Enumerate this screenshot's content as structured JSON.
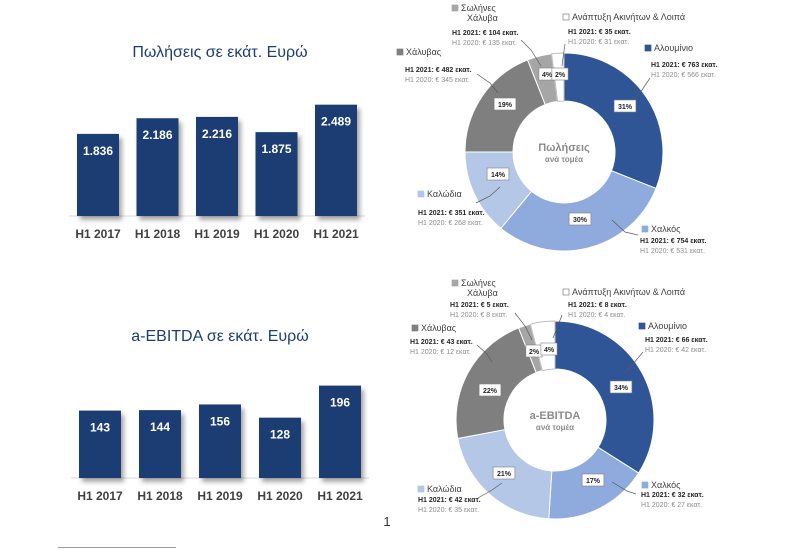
{
  "colors": {
    "bar": "#1f3c73",
    "steel": "#7f7f7f",
    "pipes": "#a6a6a6",
    "cables": "#b4c7e7",
    "copper": "#8faadc",
    "aluminium": "#2f5597",
    "realestate": "#ffffff"
  },
  "page_number": "1",
  "chart_data": [
    {
      "type": "bar",
      "title": "Πωλήσεις σε εκάτ. Ευρώ",
      "categories": [
        "H1 2017",
        "H1 2018",
        "H1 2019",
        "H1 2020",
        "H1 2021"
      ],
      "values": [
        1836,
        2186,
        2216,
        1875,
        2489
      ],
      "value_labels": [
        "1.836",
        "2.186",
        "2.216",
        "1.875",
        "2.489"
      ],
      "ylim": [
        0,
        2750
      ]
    },
    {
      "type": "bar",
      "title": "a-EBITDA σε εκάτ. Ευρώ",
      "categories": [
        "H1 2017",
        "H1 2018",
        "H1 2019",
        "H1 2020",
        "H1 2021"
      ],
      "values": [
        143,
        144,
        156,
        128,
        196
      ],
      "value_labels": [
        "143",
        "144",
        "156",
        "128",
        "196"
      ],
      "ylim": [
        0,
        210
      ]
    },
    {
      "type": "pie",
      "center_title": "Πωλήσεις",
      "center_subtitle": "ανά τομέα",
      "slices": [
        {
          "name": "Αλουμίνιο",
          "pct": 31,
          "pct_label": "31%",
          "h1_2021": "H1 2021: € 763 εκατ.",
          "h1_2020": "H1 2020: € 566 εκατ.",
          "color_key": "aluminium"
        },
        {
          "name": "Χαλκός",
          "pct": 30,
          "pct_label": "30%",
          "h1_2021": "H1 2021: € 754 εκατ.",
          "h1_2020": "H1 2020: € 531 εκατ.",
          "color_key": "copper"
        },
        {
          "name": "Καλώδια",
          "pct": 14,
          "pct_label": "14%",
          "h1_2021": "H1 2021: € 351 εκατ.",
          "h1_2020": "H1 2020: € 268 εκατ.",
          "color_key": "cables"
        },
        {
          "name": "Χάλυβας",
          "pct": 19,
          "pct_label": "19%",
          "h1_2021": "H1 2021: € 482 εκατ.",
          "h1_2020": "H1 2020: € 345 εκατ.",
          "color_key": "steel"
        },
        {
          "name": "Σωλήνες Χάλυβα",
          "name_lines": [
            "Σωλήνες",
            "Χάλυβα"
          ],
          "pct": 4,
          "pct_label": "4%",
          "h1_2021": "H1 2021: € 104 εκατ.",
          "h1_2020": "H1 2020: € 135 εκατ.",
          "color_key": "pipes"
        },
        {
          "name": "Ανάπτυξη Ακινήτων & Λοιπά",
          "pct": 2,
          "pct_label": "2%",
          "h1_2021": "H1 2021: € 35 εκατ.",
          "h1_2020": "H1 2020: € 31 εκατ.",
          "color_key": "realestate"
        }
      ]
    },
    {
      "type": "pie",
      "center_title": "a-EBITDA",
      "center_subtitle": "ανά τομέα",
      "slices": [
        {
          "name": "Αλουμίνιο",
          "pct": 34,
          "pct_label": "34%",
          "h1_2021": "H1 2021: € 66 εκατ.",
          "h1_2020": "H1 2020: € 42 εκατ.",
          "color_key": "aluminium"
        },
        {
          "name": "Χαλκός",
          "pct": 17,
          "pct_label": "17%",
          "h1_2021": "H1 2021: € 32 εκατ.",
          "h1_2020": "H1 2020: € 27 εκατ.",
          "color_key": "copper"
        },
        {
          "name": "Καλώδια",
          "pct": 21,
          "pct_label": "21%",
          "h1_2021": "H1 2021: € 42 εκατ.",
          "h1_2020": "H1 2020: € 35 εκατ.",
          "color_key": "cables"
        },
        {
          "name": "Χάλυβας",
          "pct": 22,
          "pct_label": "22%",
          "h1_2021": "H1 2021: € 43 εκατ.",
          "h1_2020": "H1 2020: € 12 εκατ.",
          "color_key": "steel"
        },
        {
          "name": "Σωλήνες Χάλυβα",
          "name_lines": [
            "Σωλήνες",
            "Χάλυβα"
          ],
          "pct": 2,
          "pct_label": "2%",
          "h1_2021": "H1 2021: € 5 εκατ.",
          "h1_2020": "H1 2020: € 8 εκατ.",
          "color_key": "pipes"
        },
        {
          "name": "Ανάπτυξη Ακινήτων & Λοιπά",
          "pct": 4,
          "pct_label": "4%",
          "h1_2021": "H1 2021: € 8 εκατ.",
          "h1_2020": "H1 2020: € 4 εκατ.",
          "color_key": "realestate"
        }
      ]
    }
  ]
}
